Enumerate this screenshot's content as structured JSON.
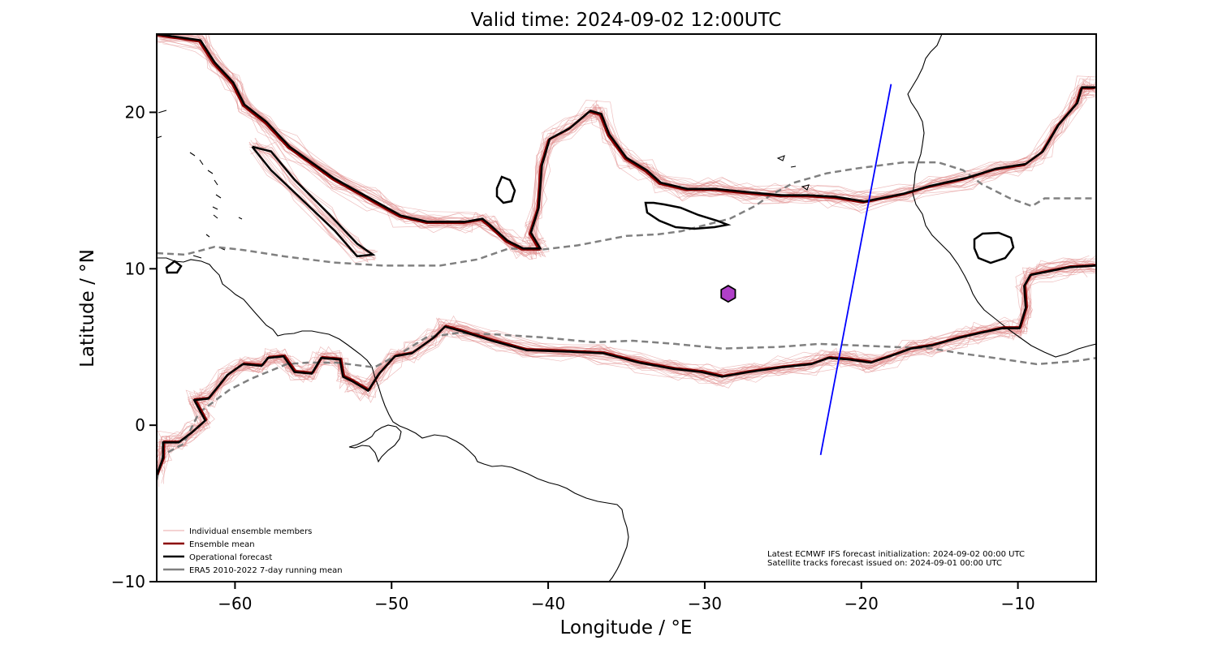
{
  "chart_data": {
    "type": "map",
    "title": "Valid time: 2024-09-02 12:00UTC",
    "xlabel": "Longitude / °E",
    "ylabel": "Latitude / °N",
    "xlim": [
      -65,
      -5
    ],
    "ylim": [
      -10,
      25
    ],
    "xticks": [
      -60,
      -50,
      -40,
      -30,
      -20,
      -10
    ],
    "yticks": [
      -10,
      0,
      10,
      20
    ],
    "xtick_labels": [
      "−60",
      "−50",
      "−40",
      "−30",
      "−20",
      "−10"
    ],
    "ytick_labels": [
      "−10",
      "0",
      "10",
      "20"
    ],
    "colors": {
      "members": "#e08a8a",
      "ensemble_mean": "#8b0000",
      "operational": "#000000",
      "climatology": "#808080",
      "satellite_track": "#0000ff",
      "marker": "#b040c8",
      "coastline": "#000000"
    },
    "legend": {
      "placement": "lower-left",
      "entries": [
        {
          "label": "Individual ensemble members",
          "style": "thin-pink"
        },
        {
          "label": "Ensemble mean",
          "style": "dark-red"
        },
        {
          "label": "Operational forecast",
          "style": "black"
        },
        {
          "label": "ERA5 2010-2022 7-day running mean",
          "style": "gray"
        }
      ]
    },
    "annotations": [
      "Latest ECMWF IFS forecast initialization: 2024-09-02 00:00 UTC",
      "Satellite tracks forecast issued on: 2024-09-01 00:00 UTC"
    ],
    "marker": {
      "lon": -28.5,
      "lat": 8.4,
      "shape": "hexagon"
    },
    "satellite_track": [
      [
        -22.6,
        -1.9
      ],
      [
        -18.1,
        21.8
      ]
    ],
    "operational_north": [
      [
        -65,
        25
      ],
      [
        -62.2,
        24.6
      ],
      [
        -61.3,
        23.2
      ],
      [
        -60.1,
        21.9
      ],
      [
        -59.4,
        20.5
      ],
      [
        -58,
        19.4
      ],
      [
        -56.5,
        17.8
      ],
      [
        -53.7,
        15.8
      ],
      [
        -51.2,
        14.4
      ],
      [
        -49.4,
        13.4
      ],
      [
        -47.7,
        13
      ],
      [
        -45.3,
        13
      ],
      [
        -44.2,
        13.2
      ],
      [
        -43.7,
        12.8
      ],
      [
        -42.6,
        11.8
      ],
      [
        -41.6,
        11.3
      ],
      [
        -40.5,
        11.3
      ],
      [
        -41.1,
        12.3
      ],
      [
        -40.6,
        13.9
      ],
      [
        -40.4,
        16.6
      ],
      [
        -39.9,
        18.3
      ],
      [
        -38.6,
        19
      ],
      [
        -37.3,
        20.1
      ],
      [
        -36.6,
        19.9
      ],
      [
        -36.1,
        18.6
      ],
      [
        -35,
        17.1
      ],
      [
        -33.7,
        16.3
      ],
      [
        -32.8,
        15.5
      ],
      [
        -31.1,
        15.1
      ],
      [
        -29.3,
        15.1
      ],
      [
        -27.3,
        14.9
      ],
      [
        -25.1,
        14.7
      ],
      [
        -23.4,
        14.7
      ],
      [
        -21.6,
        14.6
      ],
      [
        -19.8,
        14.3
      ],
      [
        -17.3,
        14.8
      ],
      [
        -15.6,
        15.3
      ],
      [
        -13.3,
        15.8
      ],
      [
        -11.4,
        16.4
      ],
      [
        -9.5,
        16.7
      ],
      [
        -8.4,
        17.5
      ],
      [
        -7.4,
        19.2
      ],
      [
        -6.2,
        20.6
      ],
      [
        -5.9,
        21.6
      ],
      [
        -5,
        21.6
      ]
    ],
    "operational_north_2": [
      [
        -58.9,
        17.8
      ],
      [
        -57.7,
        17.5
      ],
      [
        -56.2,
        15.7
      ],
      [
        -54,
        13.5
      ],
      [
        -52.2,
        11.6
      ],
      [
        -51.2,
        10.9
      ],
      [
        -52.2,
        10.8
      ],
      [
        -53.6,
        12.4
      ],
      [
        -55.8,
        14.5
      ],
      [
        -57.7,
        16.3
      ],
      [
        -58.9,
        17.8
      ]
    ],
    "operational_south": [
      [
        -65,
        -3.2
      ],
      [
        -64.6,
        -2.1
      ],
      [
        -64.6,
        -1.1
      ],
      [
        -63.6,
        -1.1
      ],
      [
        -62.8,
        -0.5
      ],
      [
        -61.9,
        0.3
      ],
      [
        -62.6,
        1.6
      ],
      [
        -61.7,
        1.7
      ],
      [
        -60.5,
        3.2
      ],
      [
        -59.5,
        3.9
      ],
      [
        -58.3,
        3.8
      ],
      [
        -57.9,
        4.3
      ],
      [
        -56.9,
        4.4
      ],
      [
        -56.2,
        3.4
      ],
      [
        -55.1,
        3.3
      ],
      [
        -54.5,
        4.3
      ],
      [
        -53.3,
        4.2
      ],
      [
        -53.1,
        3.1
      ],
      [
        -52.5,
        2.8
      ],
      [
        -51.5,
        2.2
      ],
      [
        -50.8,
        3.3
      ],
      [
        -49.8,
        4.4
      ],
      [
        -48.7,
        4.6
      ],
      [
        -47.3,
        5.6
      ],
      [
        -46.6,
        6.3
      ],
      [
        -45.5,
        6
      ],
      [
        -43.6,
        5.4
      ],
      [
        -41.4,
        4.8
      ],
      [
        -38.7,
        4.7
      ],
      [
        -36.5,
        4.6
      ],
      [
        -34.2,
        4
      ],
      [
        -32,
        3.6
      ],
      [
        -30.2,
        3.4
      ],
      [
        -28.9,
        3.1
      ],
      [
        -27.2,
        3.4
      ],
      [
        -25.1,
        3.7
      ],
      [
        -23.2,
        3.9
      ],
      [
        -22.1,
        4.3
      ],
      [
        -20.8,
        4.2
      ],
      [
        -19.4,
        4
      ],
      [
        -18.2,
        4.4
      ],
      [
        -16.8,
        4.9
      ],
      [
        -15.5,
        5.1
      ],
      [
        -13.7,
        5.6
      ],
      [
        -12.4,
        5.9
      ],
      [
        -11,
        6.2
      ],
      [
        -9.9,
        6.2
      ],
      [
        -9.5,
        7.5
      ],
      [
        -9.6,
        8.9
      ],
      [
        -9.2,
        9.6
      ],
      [
        -8.2,
        9.8
      ],
      [
        -6.7,
        10.1
      ],
      [
        -5,
        10.2
      ]
    ],
    "climatology_north": [
      [
        -65,
        11
      ],
      [
        -63.2,
        10.9
      ],
      [
        -61.3,
        11.4
      ],
      [
        -59.5,
        11.2
      ],
      [
        -56.9,
        10.8
      ],
      [
        -53.7,
        10.4
      ],
      [
        -50.5,
        10.2
      ],
      [
        -46.9,
        10.2
      ],
      [
        -44.5,
        10.6
      ],
      [
        -42.5,
        11.3
      ],
      [
        -40.6,
        11.2
      ],
      [
        -38.1,
        11.5
      ],
      [
        -35,
        12.1
      ],
      [
        -33,
        12.2
      ],
      [
        -31.5,
        12.4
      ],
      [
        -28.4,
        13.2
      ],
      [
        -26.8,
        14
      ],
      [
        -25.8,
        14.7
      ],
      [
        -24.3,
        15.5
      ],
      [
        -22.2,
        16.1
      ],
      [
        -20.4,
        16.4
      ],
      [
        -17.3,
        16.8
      ],
      [
        -15.1,
        16.8
      ],
      [
        -13.5,
        16.3
      ],
      [
        -12.3,
        15.4
      ],
      [
        -11.1,
        14.8
      ],
      [
        -10.5,
        14.5
      ],
      [
        -9.1,
        14
      ],
      [
        -8.3,
        14.5
      ],
      [
        -6.5,
        14.5
      ],
      [
        -5,
        14.5
      ]
    ],
    "climatology_south": [
      [
        -65,
        -3.5
      ],
      [
        -64.6,
        -1.9
      ],
      [
        -63.3,
        -1.2
      ],
      [
        -62.3,
        0.8
      ],
      [
        -60.3,
        2.3
      ],
      [
        -58.9,
        3
      ],
      [
        -56.7,
        3.9
      ],
      [
        -55.4,
        4
      ],
      [
        -53.5,
        4
      ],
      [
        -51.1,
        3.7
      ],
      [
        -49.4,
        4.6
      ],
      [
        -47.8,
        5.6
      ],
      [
        -45.8,
        5.9
      ],
      [
        -43.3,
        5.8
      ],
      [
        -40.2,
        5.6
      ],
      [
        -37.1,
        5.3
      ],
      [
        -34.6,
        5.4
      ],
      [
        -31.9,
        5.2
      ],
      [
        -28.9,
        4.9
      ],
      [
        -25.3,
        5
      ],
      [
        -22.7,
        5.2
      ],
      [
        -20.3,
        5.1
      ],
      [
        -17.9,
        5
      ],
      [
        -15.5,
        4.9
      ],
      [
        -13.7,
        4.6
      ],
      [
        -11.5,
        4.3
      ],
      [
        -8.8,
        3.9
      ],
      [
        -6.3,
        4.1
      ],
      [
        -5,
        4.3
      ]
    ]
  }
}
